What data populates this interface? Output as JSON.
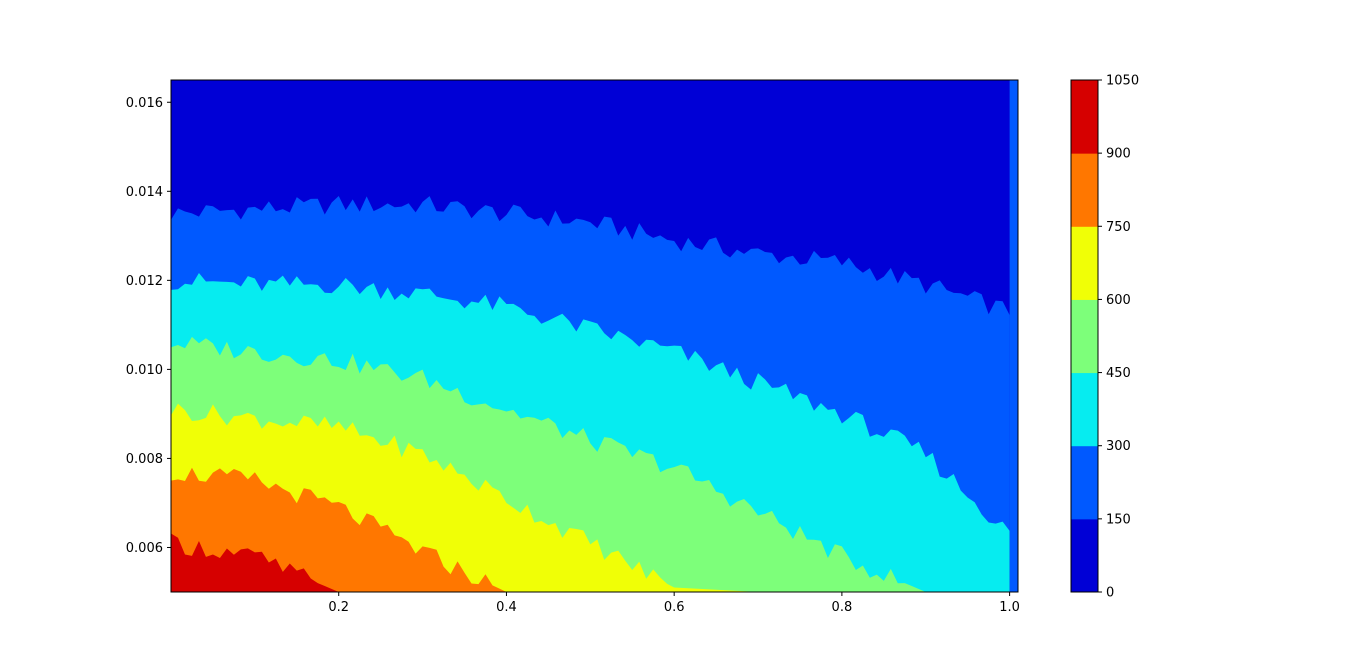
{
  "chart_data": {
    "type": "contourf",
    "colormap": "jet",
    "xlim": [
      0.0,
      1.01
    ],
    "ylim": [
      0.005,
      0.0165
    ],
    "x_ticks": [
      {
        "value": 0.2,
        "label": "0.2"
      },
      {
        "value": 0.4,
        "label": "0.4"
      },
      {
        "value": 0.6,
        "label": "0.6"
      },
      {
        "value": 0.8,
        "label": "0.8"
      },
      {
        "value": 1.0,
        "label": "1.0"
      }
    ],
    "y_ticks": [
      {
        "value": 0.006,
        "label": "0.006"
      },
      {
        "value": 0.008,
        "label": "0.008"
      },
      {
        "value": 0.01,
        "label": "0.010"
      },
      {
        "value": 0.012,
        "label": "0.012"
      },
      {
        "value": 0.014,
        "label": "0.014"
      },
      {
        "value": 0.016,
        "label": "0.016"
      }
    ],
    "levels": [
      0,
      150,
      300,
      450,
      600,
      750,
      900,
      1050
    ],
    "level_labels": [
      "0",
      "150",
      "300",
      "450",
      "600",
      "750",
      "900",
      "1050"
    ],
    "level_colors": [
      "#0000d6",
      "#0059ff",
      "#06ecf0",
      "#7dff7a",
      "#f0ff06",
      "#ff7700",
      "#d60000"
    ],
    "boundaries": [
      {
        "level": 150,
        "x": [
          0.0,
          0.1,
          0.2,
          0.3,
          0.4,
          0.5,
          0.6,
          0.7,
          0.8,
          0.9,
          1.0
        ],
        "y": [
          0.0135,
          0.0136,
          0.0137,
          0.0137,
          0.0135,
          0.0133,
          0.0129,
          0.0126,
          0.0124,
          0.0119,
          0.0113
        ]
      },
      {
        "level": 300,
        "x": [
          0.0,
          0.1,
          0.2,
          0.3,
          0.4,
          0.5,
          0.6,
          0.7,
          0.8,
          0.9,
          1.0
        ],
        "y": [
          0.012,
          0.0119,
          0.0119,
          0.0117,
          0.0114,
          0.0109,
          0.0104,
          0.0097,
          0.009,
          0.0081,
          0.0063
        ]
      },
      {
        "level": 450,
        "x": [
          0.0,
          0.1,
          0.2,
          0.3,
          0.4,
          0.5,
          0.6,
          0.7,
          0.8,
          0.9,
          1.0
        ],
        "y": [
          0.0106,
          0.0104,
          0.0102,
          0.0098,
          0.0091,
          0.0084,
          0.0078,
          0.0068,
          0.0058,
          0.005,
          0.005
        ]
      },
      {
        "level": 600,
        "x": [
          0.0,
          0.1,
          0.2,
          0.3,
          0.4,
          0.5,
          0.6,
          0.7,
          0.8,
          0.9,
          1.0
        ],
        "y": [
          0.0091,
          0.0089,
          0.0087,
          0.0081,
          0.0071,
          0.0061,
          0.0051,
          0.005,
          0.005,
          0.005,
          0.005
        ]
      },
      {
        "level": 750,
        "x": [
          0.0,
          0.1,
          0.2,
          0.3,
          0.4,
          0.5,
          0.6,
          0.7,
          0.8,
          0.9,
          1.0
        ],
        "y": [
          0.0077,
          0.0075,
          0.0069,
          0.0059,
          0.005,
          0.005,
          0.005,
          0.005,
          0.005,
          0.005,
          0.005
        ]
      },
      {
        "level": 900,
        "x": [
          0.0,
          0.1,
          0.2,
          0.3,
          0.4,
          0.5,
          0.6,
          0.7,
          0.8,
          0.9,
          1.0
        ],
        "y": [
          0.0061,
          0.0058,
          0.005,
          0.005,
          0.005,
          0.005,
          0.005,
          0.005,
          0.005,
          0.005,
          0.005
        ]
      }
    ]
  }
}
